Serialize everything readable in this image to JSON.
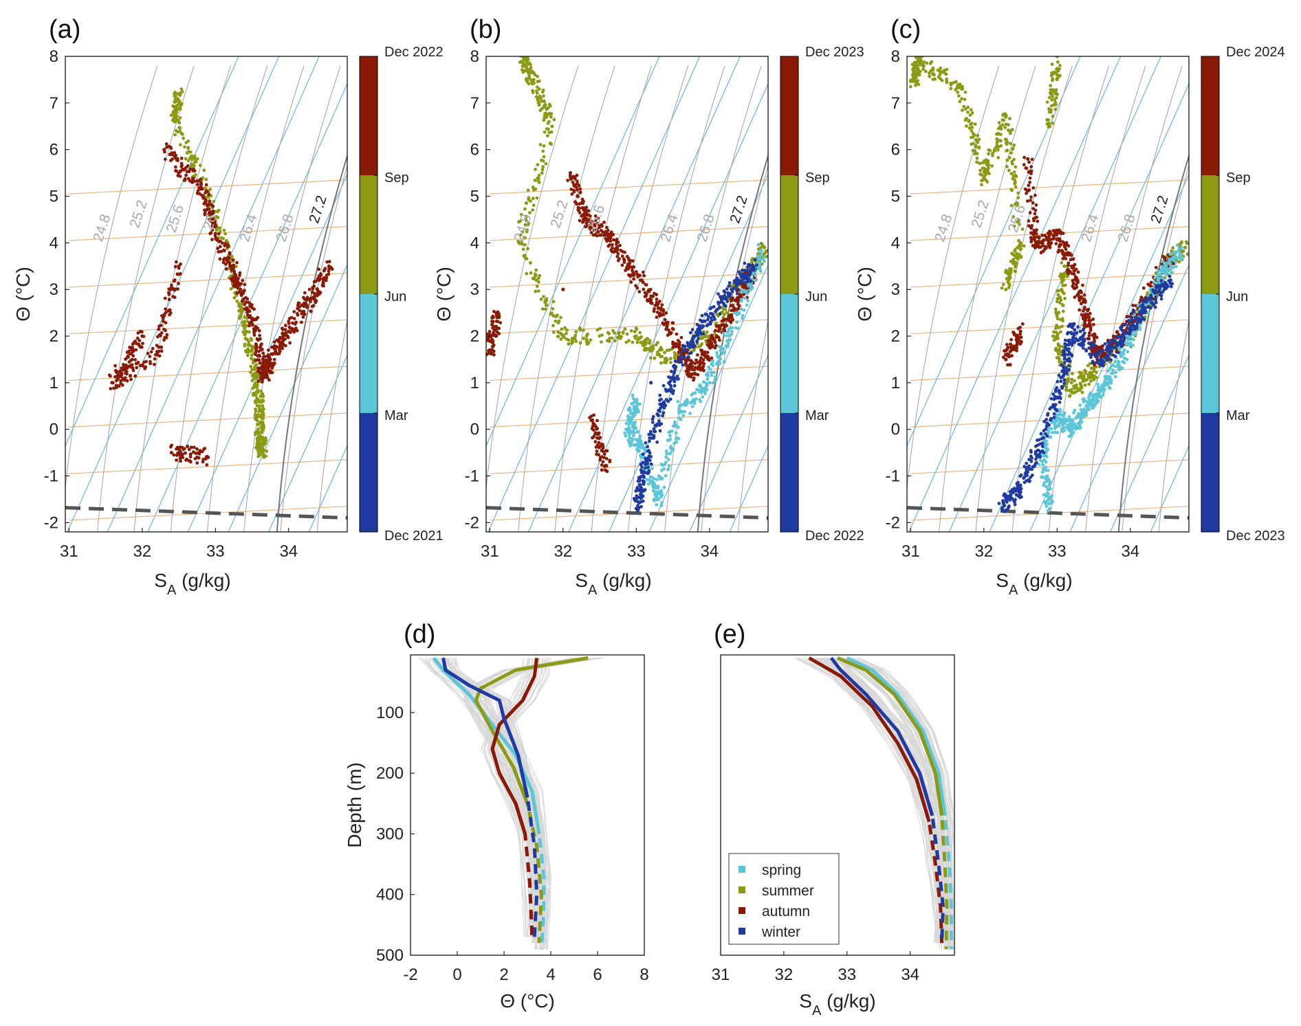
{
  "figure": {
    "panels_top": [
      {
        "label": "(a)",
        "colorbar": {
          "top": "Dec 2022",
          "sep": "Sep",
          "jun": "Jun",
          "mar": "Mar",
          "bottom": "Dec 2021"
        }
      },
      {
        "label": "(b)",
        "colorbar": {
          "top": "Dec 2023",
          "sep": "Sep",
          "jun": "Jun",
          "mar": "Mar",
          "bottom": "Dec 2022"
        }
      },
      {
        "label": "(c)",
        "colorbar": {
          "top": "Dec 2024",
          "sep": "Sep",
          "jun": "Jun",
          "mar": "Mar",
          "bottom": "Dec 2023"
        }
      }
    ],
    "ts_axes": {
      "xlabel": "S",
      "xlabel_sub": "A",
      "xlabel_unit": " (g/kg)",
      "ylabel": "Θ (°C)",
      "xlim": [
        30.95,
        34.8
      ],
      "ylim": [
        -2.2,
        8
      ],
      "xticks": [
        "31",
        "32",
        "33",
        "34"
      ],
      "yticks": [
        "8",
        "7",
        "6",
        "5",
        "4",
        "3",
        "2",
        "1",
        "0",
        "-1",
        "-2"
      ],
      "isopycnal_labels": [
        "24.8",
        "25.2",
        "25.6",
        "26",
        "26.4",
        "26.8",
        "27.2"
      ]
    },
    "panel_d": {
      "label": "(d)",
      "xlabel": "Θ (°C)",
      "ylabel": "Depth (m)",
      "xticks": [
        "-2",
        "0",
        "2",
        "4",
        "6",
        "8"
      ],
      "yticks": [
        "100",
        "200",
        "300",
        "400",
        "500"
      ]
    },
    "panel_e": {
      "label": "(e)",
      "xlabel": "S",
      "xlabel_sub": "A",
      "xlabel_unit": " (g/kg)",
      "xticks": [
        "31",
        "32",
        "33",
        "34"
      ]
    },
    "legend": [
      "spring",
      "summer",
      "autumn",
      "winter"
    ]
  },
  "colors": {
    "spring": "#5bc6d8",
    "summer": "#8c9a13",
    "autumn": "#8a1a05",
    "winter": "#1f3aa0",
    "isopycnal": "#a9a9a9",
    "sound": "#6cb3d9",
    "spice": "#f0b47a",
    "freezing": "#555555"
  },
  "chart_data": [
    {
      "type": "scatter",
      "title": "(a)",
      "xlabel": "S_A (g/kg)",
      "ylabel": "Θ (°C)",
      "xlim": [
        30.95,
        34.8
      ],
      "ylim": [
        -2.2,
        8
      ],
      "colorbar": [
        "Dec 2021",
        "Mar",
        "Jun",
        "Sep",
        "Dec 2022"
      ],
      "series": [
        {
          "name": "summer",
          "points": [
            [
              32.5,
              7.2
            ],
            [
              32.45,
              6.6
            ],
            [
              32.9,
              5.0
            ],
            [
              33.2,
              3.6
            ],
            [
              33.4,
              2.2
            ],
            [
              33.55,
              1.2
            ],
            [
              33.6,
              0.5
            ],
            [
              33.6,
              -0.2
            ],
            [
              33.65,
              -0.45
            ]
          ]
        },
        {
          "name": "autumn",
          "points": [
            [
              32.3,
              6.0
            ],
            [
              32.8,
              5.2
            ],
            [
              33.0,
              4.2
            ],
            [
              33.3,
              3.2
            ],
            [
              33.55,
              2.2
            ],
            [
              33.65,
              1.1
            ],
            [
              33.75,
              1.5
            ],
            [
              34.0,
              2.1
            ],
            [
              34.3,
              2.8
            ],
            [
              34.55,
              3.5
            ],
            [
              32.5,
              3.5
            ],
            [
              32.2,
              1.6
            ],
            [
              31.6,
              1.0
            ],
            [
              32.0,
              2.0
            ],
            [
              32.9,
              -0.6
            ],
            [
              32.4,
              -0.5
            ]
          ]
        }
      ]
    },
    {
      "type": "scatter",
      "title": "(b)",
      "xlabel": "S_A (g/kg)",
      "ylabel": "Θ (°C)",
      "xlim": [
        30.95,
        34.8
      ],
      "ylim": [
        -2.2,
        8
      ],
      "colorbar": [
        "Dec 2022",
        "Mar",
        "Jun",
        "Sep",
        "Dec 2023"
      ],
      "series": [
        {
          "name": "summer",
          "points": [
            [
              31.45,
              8.0
            ],
            [
              31.6,
              7.5
            ],
            [
              31.85,
              6.5
            ],
            [
              31.4,
              4.0
            ],
            [
              32.0,
              2.0
            ],
            [
              33.0,
              2.0
            ],
            [
              33.4,
              1.5
            ],
            [
              34.0,
              2.0
            ],
            [
              34.5,
              3.3
            ],
            [
              34.75,
              3.9
            ]
          ]
        },
        {
          "name": "autumn",
          "points": [
            [
              32.1,
              5.5
            ],
            [
              32.3,
              4.5
            ],
            [
              32.6,
              4.2
            ],
            [
              32.9,
              3.5
            ],
            [
              33.3,
              2.6
            ],
            [
              33.6,
              1.7
            ],
            [
              33.8,
              1.2
            ],
            [
              34.1,
              2.0
            ],
            [
              34.4,
              2.8
            ],
            [
              34.6,
              3.4
            ],
            [
              32.0,
              3.0
            ],
            [
              32.4,
              0.2
            ],
            [
              32.6,
              -0.9
            ],
            [
              31.1,
              2.4
            ],
            [
              31.0,
              1.7
            ]
          ]
        },
        {
          "name": "spring",
          "points": [
            [
              33.0,
              0.6
            ],
            [
              32.9,
              0.0
            ],
            [
              33.1,
              -0.6
            ],
            [
              33.3,
              -1.5
            ],
            [
              33.6,
              0.4
            ],
            [
              34.0,
              1.0
            ],
            [
              34.4,
              2.5
            ],
            [
              34.7,
              3.8
            ]
          ]
        },
        {
          "name": "winter",
          "points": [
            [
              33.0,
              -1.7
            ],
            [
              33.1,
              -1.0
            ],
            [
              33.3,
              0.3
            ],
            [
              33.6,
              1.5
            ],
            [
              33.9,
              2.2
            ],
            [
              34.3,
              3.0
            ],
            [
              34.6,
              3.5
            ],
            [
              33.2,
              1.0
            ]
          ]
        }
      ]
    },
    {
      "type": "scatter",
      "title": "(c)",
      "xlabel": "S_A (g/kg)",
      "ylabel": "Θ (°C)",
      "xlim": [
        30.95,
        34.8
      ],
      "ylim": [
        -2.2,
        8
      ],
      "colorbar": [
        "Dec 2023",
        "Mar",
        "Jun",
        "Sep",
        "Dec 2024"
      ],
      "series": [
        {
          "name": "summer",
          "points": [
            [
              31.05,
              7.5
            ],
            [
              31.1,
              7.9
            ],
            [
              31.7,
              7.3
            ],
            [
              32.0,
              5.4
            ],
            [
              32.3,
              6.7
            ],
            [
              32.5,
              4.0
            ],
            [
              32.3,
              3.0
            ],
            [
              32.9,
              6.5
            ],
            [
              33.0,
              8.0
            ],
            [
              33.1,
              3.5
            ],
            [
              33.0,
              2.0
            ],
            [
              33.2,
              0.8
            ],
            [
              33.5,
              1.3
            ],
            [
              34.0,
              2.0
            ],
            [
              34.5,
              3.5
            ],
            [
              34.75,
              3.9
            ]
          ]
        },
        {
          "name": "autumn",
          "points": [
            [
              32.6,
              5.8
            ],
            [
              32.7,
              3.9
            ],
            [
              33.0,
              4.2
            ],
            [
              33.2,
              3.5
            ],
            [
              33.4,
              2.4
            ],
            [
              33.55,
              1.5
            ],
            [
              33.9,
              2.0
            ],
            [
              34.2,
              2.8
            ],
            [
              34.55,
              3.7
            ],
            [
              32.3,
              1.5
            ],
            [
              32.5,
              2.1
            ]
          ]
        },
        {
          "name": "spring",
          "points": [
            [
              32.9,
              -1.7
            ],
            [
              32.8,
              -0.5
            ],
            [
              33.0,
              0.3
            ],
            [
              33.2,
              0.0
            ],
            [
              33.4,
              0.5
            ],
            [
              33.7,
              1.0
            ],
            [
              34.0,
              2.0
            ],
            [
              34.4,
              3.2
            ],
            [
              34.7,
              3.9
            ]
          ]
        },
        {
          "name": "winter",
          "points": [
            [
              32.25,
              -1.7
            ],
            [
              32.5,
              -1.2
            ],
            [
              32.8,
              -0.3
            ],
            [
              33.1,
              1.2
            ],
            [
              33.2,
              2.2
            ],
            [
              33.6,
              1.5
            ],
            [
              33.9,
              2.0
            ],
            [
              34.2,
              2.6
            ],
            [
              34.55,
              3.2
            ]
          ]
        }
      ]
    },
    {
      "type": "line",
      "title": "(d)",
      "xlabel": "Θ (°C)",
      "ylabel": "Depth (m)",
      "xlim": [
        -2,
        8
      ],
      "ylim": [
        500,
        5
      ],
      "series": [
        {
          "name": "spring",
          "x": [
            -1.0,
            -0.6,
            0.5,
            1.5,
            2.5,
            3.2,
            3.5,
            3.7,
            3.7,
            3.6
          ],
          "depth": [
            10,
            30,
            70,
            120,
            170,
            230,
            300,
            370,
            430,
            490
          ]
        },
        {
          "name": "summer",
          "x": [
            5.6,
            2.5,
            1.0,
            0.8,
            1.5,
            2.4,
            3.0,
            3.4,
            3.6,
            3.5
          ],
          "depth": [
            10,
            30,
            60,
            80,
            130,
            190,
            250,
            320,
            400,
            480
          ]
        },
        {
          "name": "autumn",
          "x": [
            3.4,
            3.3,
            2.8,
            1.8,
            1.5,
            1.8,
            2.5,
            2.9,
            3.1,
            3.2
          ],
          "depth": [
            10,
            40,
            80,
            120,
            160,
            200,
            250,
            300,
            380,
            470
          ]
        },
        {
          "name": "winter",
          "x": [
            -0.6,
            -0.5,
            0.5,
            1.8,
            2.0,
            2.6,
            3.0,
            3.3,
            3.4,
            3.3
          ],
          "depth": [
            10,
            30,
            55,
            80,
            110,
            170,
            240,
            320,
            400,
            470
          ]
        }
      ]
    },
    {
      "type": "line",
      "title": "(e)",
      "xlabel": "S_A (g/kg)",
      "xlim": [
        31,
        34.7
      ],
      "ylim": [
        500,
        5
      ],
      "legend": [
        "spring",
        "summer",
        "autumn",
        "winter"
      ],
      "series": [
        {
          "name": "spring",
          "x": [
            33.0,
            33.4,
            33.8,
            34.2,
            34.45,
            34.55,
            34.62,
            34.65,
            34.65
          ],
          "depth": [
            10,
            30,
            70,
            130,
            200,
            270,
            350,
            420,
            490
          ]
        },
        {
          "name": "summer",
          "x": [
            32.85,
            33.3,
            33.75,
            34.15,
            34.4,
            34.5,
            34.55,
            34.58,
            34.57
          ],
          "depth": [
            10,
            30,
            70,
            130,
            200,
            270,
            350,
            420,
            490
          ]
        },
        {
          "name": "autumn",
          "x": [
            32.4,
            32.9,
            33.4,
            33.8,
            34.1,
            34.3,
            34.4,
            34.48,
            34.5
          ],
          "depth": [
            10,
            40,
            90,
            150,
            210,
            280,
            350,
            420,
            480
          ]
        },
        {
          "name": "winter",
          "x": [
            32.75,
            32.9,
            33.3,
            33.8,
            34.15,
            34.35,
            34.45,
            34.52,
            34.5
          ],
          "depth": [
            10,
            30,
            70,
            130,
            200,
            270,
            350,
            420,
            480
          ]
        }
      ]
    }
  ]
}
